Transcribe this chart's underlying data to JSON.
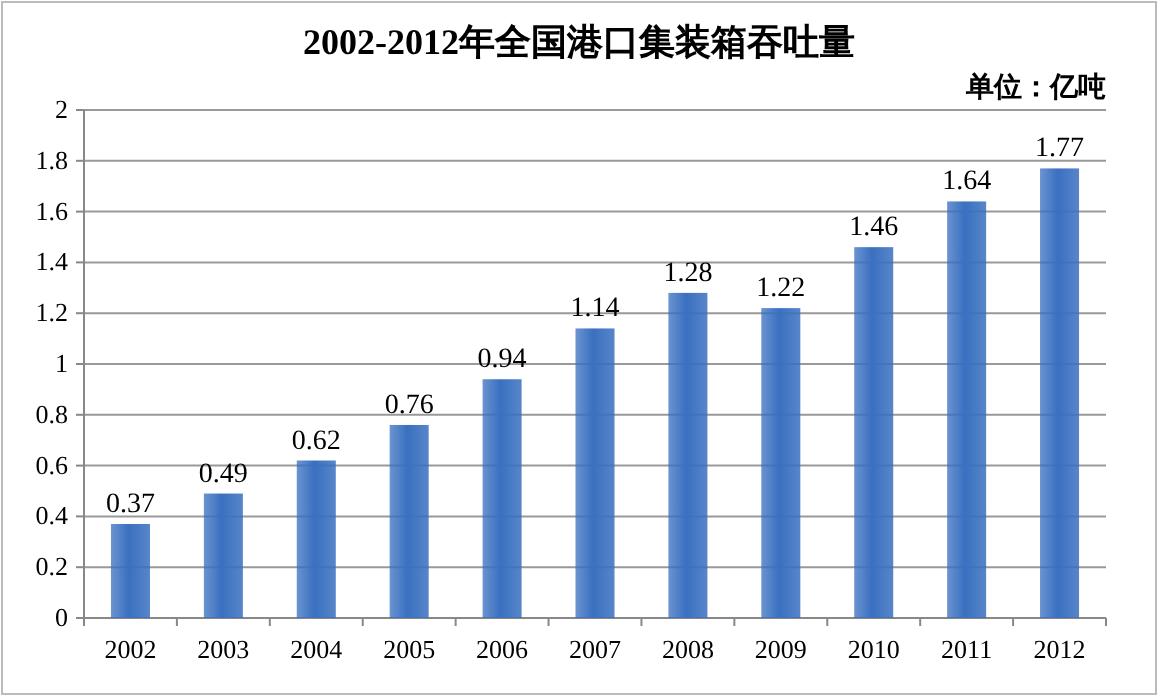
{
  "chart_data": {
    "type": "bar",
    "title": "2002-2012年全国港口集装箱吞吐量",
    "annotations": [
      "单位：亿吨"
    ],
    "categories": [
      "2002",
      "2003",
      "2004",
      "2005",
      "2006",
      "2007",
      "2008",
      "2009",
      "2010",
      "2011",
      "2012"
    ],
    "values": [
      0.37,
      0.49,
      0.62,
      0.76,
      0.94,
      1.14,
      1.28,
      1.22,
      1.46,
      1.64,
      1.77
    ],
    "color": "#3a70c0",
    "ylim": [
      0,
      2
    ],
    "yticks": [
      0,
      0.2,
      0.4,
      0.6,
      0.8,
      1,
      1.2,
      1.4,
      1.6,
      1.8,
      2
    ],
    "grid": "y",
    "data_labels": true
  }
}
